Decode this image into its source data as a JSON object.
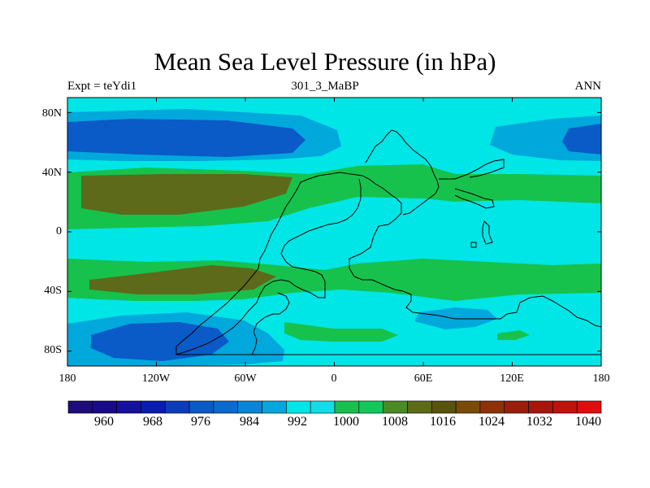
{
  "figure": {
    "title": "Mean Sea Level Pressure (in hPa)",
    "left_label": "Expt = teYdi1",
    "center_label": "301_3_MaBP",
    "right_label": "ANN"
  },
  "axes": {
    "lon_range": [
      -180,
      180
    ],
    "lat_range": [
      -90,
      90
    ],
    "lat_ticks": [
      {
        "value": 80,
        "label": "80N"
      },
      {
        "value": 40,
        "label": "40N"
      },
      {
        "value": 0,
        "label": "0"
      },
      {
        "value": -40,
        "label": "40S"
      },
      {
        "value": -80,
        "label": "80S"
      }
    ],
    "lon_ticks": [
      {
        "value": -180,
        "label": "180"
      },
      {
        "value": -120,
        "label": "120W"
      },
      {
        "value": -60,
        "label": "60W"
      },
      {
        "value": 0,
        "label": "0"
      },
      {
        "value": 60,
        "label": "60E"
      },
      {
        "value": 120,
        "label": "120E"
      },
      {
        "value": 180,
        "label": "180"
      }
    ]
  },
  "colorbar": {
    "labels": [
      "960",
      "968",
      "976",
      "984",
      "992",
      "1000",
      "1008",
      "1016",
      "1024",
      "1032",
      "1040"
    ],
    "colors": [
      "#1e0c78",
      "#180a88",
      "#1410a0",
      "#0a1ab4",
      "#0b3cbc",
      "#0a5ac8",
      "#0a6ad0",
      "#0a86d6",
      "#00a8dc",
      "#00e6e6",
      "#14dce6",
      "#16c24c",
      "#12c85a",
      "#4a8a28",
      "#5c6a1a",
      "#585410",
      "#7a4a0a",
      "#8c320a",
      "#9a1e0a",
      "#aa140a",
      "#c0120c",
      "#de0e10"
    ]
  },
  "colors": {
    "background_field": "#00e6e6",
    "moderate_high": "#16c24c",
    "strong_high": "#5c6a1a",
    "moderate_low": "#00a8dc",
    "strong_low": "#0a5ac8",
    "coastline": "#000000"
  }
}
